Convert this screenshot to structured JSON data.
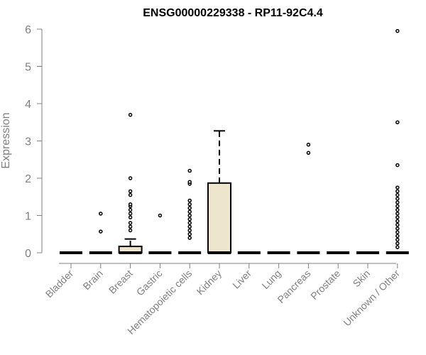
{
  "chart_data": {
    "type": "box",
    "title": "ENSG00000229338 - RP11-92C4.4",
    "xlabel": "",
    "ylabel": "Expression",
    "ylim": [
      0,
      6
    ],
    "yticks": [
      0,
      1,
      2,
      3,
      4,
      5,
      6
    ],
    "grid": false,
    "legend": "none",
    "box_fill": "#ede6cc",
    "point_color": "#000000",
    "categories": [
      "Bladder",
      "Brain",
      "Breast",
      "Gastric",
      "Hematopoietic cells",
      "Kidney",
      "Liver",
      "Lung",
      "Pancreas",
      "Prostate",
      "Skin",
      "Unknown / Other"
    ],
    "boxes": [
      {
        "category": "Bladder",
        "min": 0,
        "q1": 0,
        "median": 0,
        "q3": 0,
        "max": 0,
        "outliers": []
      },
      {
        "category": "Brain",
        "min": 0,
        "q1": 0,
        "median": 0,
        "q3": 0,
        "max": 0,
        "outliers": [
          0.57,
          1.05
        ]
      },
      {
        "category": "Breast",
        "min": 0,
        "q1": 0,
        "median": 0,
        "q3": 0.17,
        "max": 0.37,
        "outliers": [
          0.6,
          0.7,
          0.8,
          0.95,
          1.05,
          1.15,
          1.25,
          1.3,
          1.55,
          1.65,
          2.0,
          3.7
        ]
      },
      {
        "category": "Gastric",
        "min": 0,
        "q1": 0,
        "median": 0,
        "q3": 0,
        "max": 0,
        "outliers": [
          1.0
        ]
      },
      {
        "category": "Hematopoietic cells",
        "min": 0,
        "q1": 0,
        "median": 0,
        "q3": 0,
        "max": 0,
        "outliers": [
          0.4,
          0.5,
          0.6,
          0.7,
          0.8,
          0.9,
          1.0,
          1.1,
          1.2,
          1.3,
          1.4,
          1.85,
          1.9,
          2.2
        ]
      },
      {
        "category": "Kidney",
        "min": 0,
        "q1": 0,
        "median": 0,
        "q3": 1.87,
        "max": 3.27,
        "outliers": []
      },
      {
        "category": "Liver",
        "min": 0,
        "q1": 0,
        "median": 0,
        "q3": 0,
        "max": 0,
        "outliers": []
      },
      {
        "category": "Lung",
        "min": 0,
        "q1": 0,
        "median": 0,
        "q3": 0,
        "max": 0,
        "outliers": []
      },
      {
        "category": "Pancreas",
        "min": 0,
        "q1": 0,
        "median": 0,
        "q3": 0,
        "max": 0,
        "outliers": [
          2.68,
          2.9
        ]
      },
      {
        "category": "Prostate",
        "min": 0,
        "q1": 0,
        "median": 0,
        "q3": 0,
        "max": 0,
        "outliers": []
      },
      {
        "category": "Skin",
        "min": 0,
        "q1": 0,
        "median": 0,
        "q3": 0,
        "max": 0,
        "outliers": []
      },
      {
        "category": "Unknown / Other",
        "min": 0,
        "q1": 0,
        "median": 0,
        "q3": 0,
        "max": 0,
        "outliers": [
          0.15,
          0.25,
          0.35,
          0.45,
          0.55,
          0.65,
          0.75,
          0.85,
          0.95,
          1.05,
          1.15,
          1.25,
          1.35,
          1.45,
          1.55,
          1.65,
          1.75,
          2.35,
          3.5,
          5.95
        ]
      }
    ]
  }
}
